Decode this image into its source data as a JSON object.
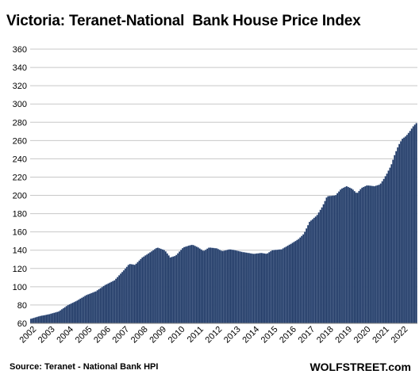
{
  "chart_data": {
    "type": "bar",
    "title": "Victoria: Teranet-National  Bank House Price Index",
    "colors": {
      "bar": "#1f3864",
      "bar_edge": "#9fb3d1",
      "grid": "#c8c8c8",
      "axis": "#808080"
    },
    "ylim": [
      60,
      360
    ],
    "yticks": [
      60,
      80,
      100,
      120,
      140,
      160,
      180,
      200,
      220,
      240,
      260,
      280,
      300,
      320,
      340,
      360
    ],
    "xlim": [
      2002.0,
      2022.85
    ],
    "xticks": [
      "2002",
      "2003",
      "2004",
      "2005",
      "2006",
      "2007",
      "2008",
      "2009",
      "2010",
      "2011",
      "2012",
      "2013",
      "2014",
      "2015",
      "2016",
      "2017",
      "2018",
      "2019",
      "2020",
      "2021",
      "2022"
    ],
    "grid": true,
    "series": [
      {
        "keypoints": [
          [
            2002.0,
            65
          ],
          [
            2002.5,
            68
          ],
          [
            2003.0,
            70
          ],
          [
            2003.5,
            73
          ],
          [
            2004.0,
            80
          ],
          [
            2004.5,
            85
          ],
          [
            2005.0,
            91
          ],
          [
            2005.5,
            95
          ],
          [
            2006.0,
            102
          ],
          [
            2006.5,
            107
          ],
          [
            2007.0,
            118
          ],
          [
            2007.3,
            125
          ],
          [
            2007.6,
            124
          ],
          [
            2008.0,
            132
          ],
          [
            2008.3,
            136
          ],
          [
            2008.8,
            143
          ],
          [
            2009.2,
            140
          ],
          [
            2009.5,
            132
          ],
          [
            2009.8,
            134
          ],
          [
            2010.2,
            143
          ],
          [
            2010.5,
            145
          ],
          [
            2010.7,
            146
          ],
          [
            2011.0,
            143
          ],
          [
            2011.3,
            139
          ],
          [
            2011.6,
            143
          ],
          [
            2012.0,
            142
          ],
          [
            2012.3,
            139
          ],
          [
            2012.7,
            141
          ],
          [
            2013.0,
            140
          ],
          [
            2013.4,
            138
          ],
          [
            2013.7,
            137
          ],
          [
            2014.0,
            136
          ],
          [
            2014.4,
            137
          ],
          [
            2014.7,
            136
          ],
          [
            2015.0,
            140
          ],
          [
            2015.5,
            141
          ],
          [
            2016.0,
            147
          ],
          [
            2016.4,
            152
          ],
          [
            2016.7,
            158
          ],
          [
            2017.0,
            171
          ],
          [
            2017.4,
            178
          ],
          [
            2017.7,
            188
          ],
          [
            2017.95,
            199
          ],
          [
            2018.4,
            200
          ],
          [
            2018.7,
            207
          ],
          [
            2019.0,
            210
          ],
          [
            2019.3,
            207
          ],
          [
            2019.55,
            202
          ],
          [
            2019.8,
            208
          ],
          [
            2020.1,
            211
          ],
          [
            2020.5,
            210
          ],
          [
            2020.8,
            212
          ],
          [
            2021.0,
            218
          ],
          [
            2021.2,
            225
          ],
          [
            2021.4,
            233
          ],
          [
            2021.6,
            245
          ],
          [
            2021.8,
            255
          ],
          [
            2022.0,
            262
          ],
          [
            2022.2,
            265
          ],
          [
            2022.4,
            270
          ],
          [
            2022.6,
            276
          ],
          [
            2022.85,
            281
          ]
        ]
      }
    ]
  },
  "footer": {
    "source": "Source: Teranet - National Bank HPI",
    "brand": "WOLFSTREET.com"
  }
}
